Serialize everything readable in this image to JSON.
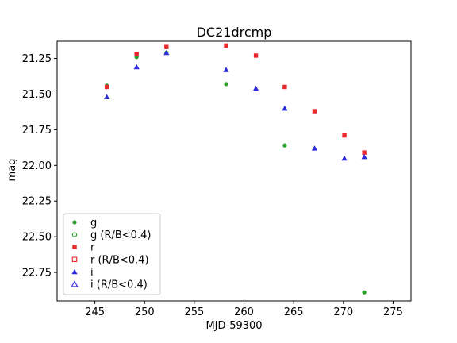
{
  "chart_data": {
    "type": "scatter",
    "title": "DC21drcmp",
    "xlabel": "MJD-59300",
    "ylabel": "mag",
    "xlim": [
      241.2,
      276.8
    ],
    "ylim": [
      22.95,
      21.13
    ],
    "y_inverted": true,
    "xticks": [
      245,
      250,
      255,
      260,
      265,
      270,
      275
    ],
    "xtick_labels": [
      "245",
      "250",
      "255",
      "260",
      "265",
      "270",
      "275"
    ],
    "yticks": [
      21.25,
      21.5,
      21.75,
      22.0,
      22.25,
      22.5,
      22.75
    ],
    "ytick_labels": [
      "21.25",
      "21.50",
      "21.75",
      "22.00",
      "22.25",
      "22.50",
      "22.75"
    ],
    "grid": false,
    "legend_position": "lower-left",
    "series": [
      {
        "name": "g",
        "color": "#2ca02c",
        "marker": "circle",
        "filled": true,
        "x": [
          246.2,
          249.2,
          252.2,
          258.2,
          264.1,
          272.1
        ],
        "y": [
          21.44,
          21.24,
          21.21,
          21.43,
          21.86,
          22.89
        ]
      },
      {
        "name": "g (R/B<0.4)",
        "color": "#2ca02c",
        "marker": "circle",
        "filled": false,
        "x": [],
        "y": []
      },
      {
        "name": "r",
        "color": "#e8282b",
        "marker": "square",
        "filled": true,
        "x": [
          246.2,
          249.2,
          252.2,
          258.2,
          261.2,
          264.1,
          267.1,
          270.1,
          272.1
        ],
        "y": [
          21.45,
          21.22,
          21.17,
          21.16,
          21.23,
          21.45,
          21.62,
          21.79,
          21.91
        ]
      },
      {
        "name": "r (R/B<0.4)",
        "color": "#e8282b",
        "marker": "square",
        "filled": false,
        "x": [],
        "y": []
      },
      {
        "name": "i",
        "color": "#2c2cd6",
        "marker": "triangle",
        "filled": true,
        "x": [
          246.2,
          249.2,
          252.2,
          258.2,
          261.2,
          264.1,
          267.1,
          270.1,
          272.1
        ],
        "y": [
          21.52,
          21.31,
          21.21,
          21.33,
          21.46,
          21.6,
          21.88,
          21.95,
          21.94
        ]
      },
      {
        "name": "i (R/B<0.4)",
        "color": "#2c2cd6",
        "marker": "triangle",
        "filled": false,
        "x": [],
        "y": []
      }
    ]
  }
}
